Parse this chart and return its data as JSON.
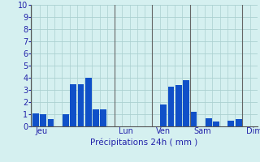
{
  "bar_values": [
    1.1,
    1.0,
    0.6,
    0.0,
    1.0,
    3.5,
    3.5,
    4.0,
    1.4,
    1.4,
    0.0,
    0.0,
    0.0,
    0.0,
    0.0,
    0.0,
    0.0,
    1.8,
    3.3,
    3.4,
    3.8,
    1.2,
    0.0,
    0.7,
    0.4,
    0.0,
    0.5,
    0.6,
    0.0,
    0.0
  ],
  "bar_color": "#1050c8",
  "background_color": "#d5f0f0",
  "grid_color": "#aad0d0",
  "tick_label_color": "#2222aa",
  "xlabel": "Précipitations 24h ( mm )",
  "ylim": [
    0,
    10
  ],
  "yticks": [
    0,
    1,
    2,
    3,
    4,
    5,
    6,
    7,
    8,
    9,
    10
  ],
  "day_labels": [
    "Jeu",
    "Lun",
    "Ven",
    "Sam",
    "Dim"
  ],
  "day_x_positions": [
    0,
    11,
    16,
    21,
    28
  ],
  "vline_x": [
    10.5,
    15.5,
    20.5,
    27.5
  ],
  "n_bars": 30
}
